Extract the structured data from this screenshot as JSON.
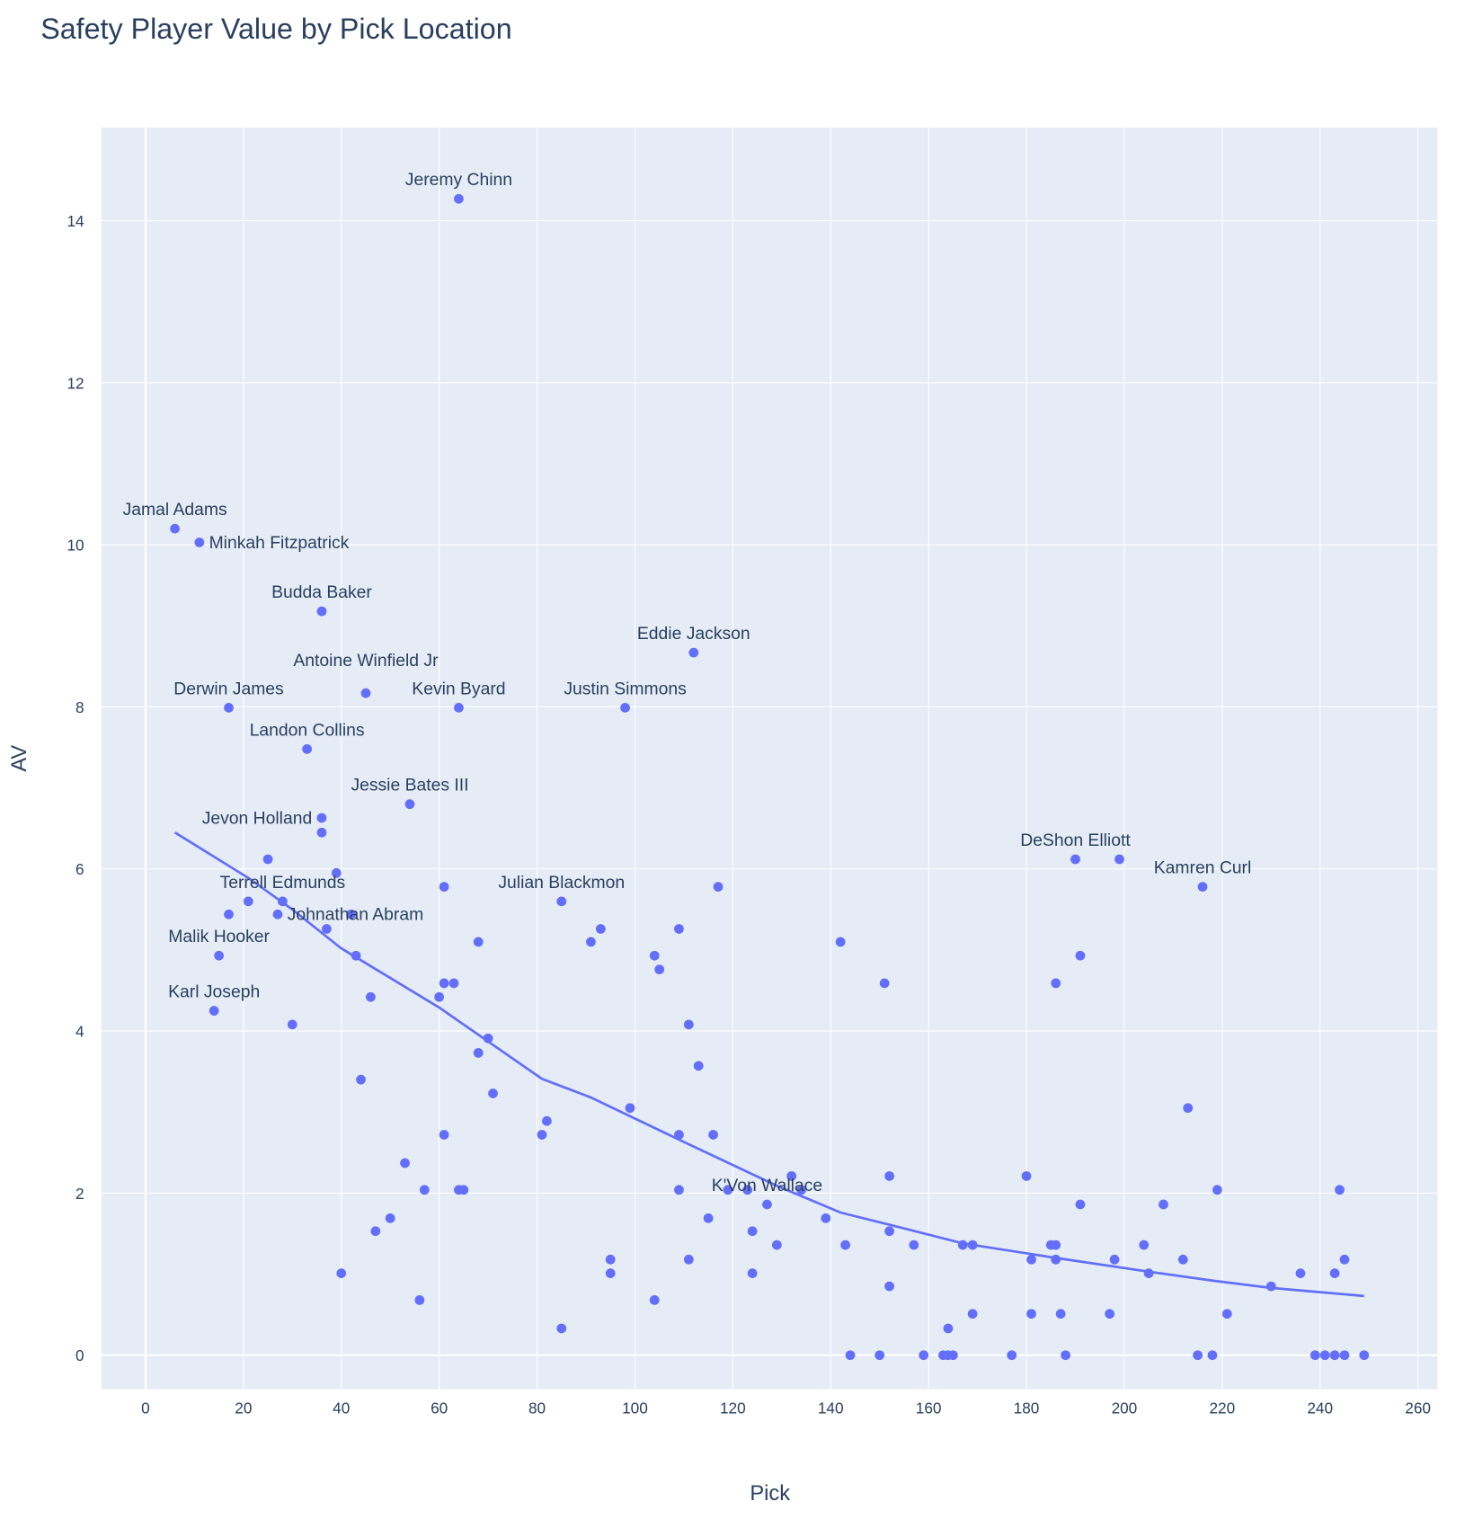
{
  "chart_data": {
    "type": "scatter",
    "title": "Safety Player Value by Pick Location",
    "xlabel": "Pick",
    "ylabel": "AV",
    "xlim": [
      -9,
      264
    ],
    "ylim": [
      -0.42,
      15.15
    ],
    "xticks": [
      0,
      20,
      40,
      60,
      80,
      100,
      120,
      140,
      160,
      180,
      200,
      220,
      240,
      260
    ],
    "yticks": [
      0,
      2,
      4,
      6,
      8,
      10,
      12,
      14
    ],
    "grid": true,
    "legend": "none",
    "colors": {
      "marker": "#636efa",
      "plot_bg": "#e5ecf6",
      "grid": "#ffffff",
      "text": "#2a3f5f"
    },
    "labeled_points": [
      {
        "name": "Jeremy Chinn",
        "x": 64,
        "y": 14.27
      },
      {
        "name": "Jamal Adams",
        "x": 6,
        "y": 10.2
      },
      {
        "name": "Minkah Fitzpatrick",
        "x": 11,
        "y": 10.03
      },
      {
        "name": "Budda Baker",
        "x": 36,
        "y": 9.18
      },
      {
        "name": "Eddie Jackson",
        "x": 112,
        "y": 8.67
      },
      {
        "name": "Antoine Winfield Jr",
        "x": 45,
        "y": 8.17
      },
      {
        "name": "Kevin Byard",
        "x": 64,
        "y": 7.99
      },
      {
        "name": "Justin Simmons",
        "x": 98,
        "y": 7.99
      },
      {
        "name": "Derwin James",
        "x": 17,
        "y": 7.99
      },
      {
        "name": "Landon Collins",
        "x": 33,
        "y": 7.48
      },
      {
        "name": "Jessie Bates III",
        "x": 54,
        "y": 6.8
      },
      {
        "name": "Jevon Holland",
        "x": 36,
        "y": 6.63
      },
      {
        "name": "DeShon Elliott",
        "x": 190,
        "y": 6.12
      },
      {
        "name": "Kamren Curl",
        "x": 216,
        "y": 5.78
      },
      {
        "name": "Julian Blackmon",
        "x": 85,
        "y": 5.6
      },
      {
        "name": "Terrell Edmunds",
        "x": 28,
        "y": 5.6
      },
      {
        "name": "Johnathan Abram",
        "x": 27,
        "y": 5.44
      },
      {
        "name": "Malik Hooker",
        "x": 15,
        "y": 4.93
      },
      {
        "name": "Karl Joseph",
        "x": 14,
        "y": 4.25
      },
      {
        "name": "K'Von Wallace",
        "x": 127,
        "y": 1.86
      }
    ],
    "points": [
      [
        21,
        5.6
      ],
      [
        17,
        5.44
      ],
      [
        25,
        6.12
      ],
      [
        36,
        6.45
      ],
      [
        39,
        5.95
      ],
      [
        37,
        5.26
      ],
      [
        42,
        5.44
      ],
      [
        43,
        4.93
      ],
      [
        46,
        4.42
      ],
      [
        30,
        4.08
      ],
      [
        44,
        3.4
      ],
      [
        40,
        1.01
      ],
      [
        53,
        2.37
      ],
      [
        47,
        1.53
      ],
      [
        50,
        1.69
      ],
      [
        56,
        0.68
      ],
      [
        57,
        2.04
      ],
      [
        61,
        5.78
      ],
      [
        61,
        4.59
      ],
      [
        63,
        4.59
      ],
      [
        60,
        4.42
      ],
      [
        61,
        2.72
      ],
      [
        64,
        2.04
      ],
      [
        65,
        2.04
      ],
      [
        68,
        5.1
      ],
      [
        68,
        3.73
      ],
      [
        70,
        3.91
      ],
      [
        71,
        3.23
      ],
      [
        81,
        2.72
      ],
      [
        82,
        2.89
      ],
      [
        85,
        0.33
      ],
      [
        91,
        5.1
      ],
      [
        93,
        5.26
      ],
      [
        95,
        1.18
      ],
      [
        95,
        1.01
      ],
      [
        99,
        3.05
      ],
      [
        104,
        4.93
      ],
      [
        105,
        4.76
      ],
      [
        104,
        0.68
      ],
      [
        109,
        5.26
      ],
      [
        109,
        2.72
      ],
      [
        109,
        2.04
      ],
      [
        111,
        4.08
      ],
      [
        111,
        1.18
      ],
      [
        113,
        3.57
      ],
      [
        116,
        2.72
      ],
      [
        117,
        5.78
      ],
      [
        115,
        1.69
      ],
      [
        119,
        2.04
      ],
      [
        123,
        2.04
      ],
      [
        124,
        1.53
      ],
      [
        124,
        1.01
      ],
      [
        129,
        1.36
      ],
      [
        132,
        2.21
      ],
      [
        134,
        2.04
      ],
      [
        139,
        1.69
      ],
      [
        142,
        5.1
      ],
      [
        143,
        1.36
      ],
      [
        144,
        0
      ],
      [
        150,
        0
      ],
      [
        151,
        4.59
      ],
      [
        152,
        2.21
      ],
      [
        152,
        1.53
      ],
      [
        152,
        0.85
      ],
      [
        157,
        1.36
      ],
      [
        159,
        0
      ],
      [
        163,
        0
      ],
      [
        164,
        0
      ],
      [
        165,
        0
      ],
      [
        164,
        0.33
      ],
      [
        167,
        1.36
      ],
      [
        169,
        1.36
      ],
      [
        169,
        0.51
      ],
      [
        177,
        0
      ],
      [
        180,
        2.21
      ],
      [
        181,
        1.18
      ],
      [
        181,
        0.51
      ],
      [
        185,
        1.36
      ],
      [
        186,
        1.36
      ],
      [
        186,
        1.18
      ],
      [
        186,
        4.59
      ],
      [
        187,
        0.51
      ],
      [
        188,
        0
      ],
      [
        191,
        4.93
      ],
      [
        191,
        1.86
      ],
      [
        197,
        0.51
      ],
      [
        198,
        1.18
      ],
      [
        199,
        6.12
      ],
      [
        204,
        1.36
      ],
      [
        205,
        1.01
      ],
      [
        208,
        1.86
      ],
      [
        212,
        1.18
      ],
      [
        213,
        3.05
      ],
      [
        215,
        0
      ],
      [
        218,
        0
      ],
      [
        219,
        2.04
      ],
      [
        221,
        0.51
      ],
      [
        230,
        0.85
      ],
      [
        236,
        1.01
      ],
      [
        239,
        0
      ],
      [
        241,
        0
      ],
      [
        243,
        0
      ],
      [
        243,
        1.01
      ],
      [
        244,
        2.04
      ],
      [
        245,
        1.18
      ],
      [
        245,
        0
      ],
      [
        249,
        0
      ]
    ],
    "trend": [
      [
        6,
        6.45
      ],
      [
        21,
        5.89
      ],
      [
        30,
        5.5
      ],
      [
        40,
        5.02
      ],
      [
        60,
        4.29
      ],
      [
        81,
        3.41
      ],
      [
        91,
        3.18
      ],
      [
        109,
        2.66
      ],
      [
        129,
        2.09
      ],
      [
        142,
        1.76
      ],
      [
        152,
        1.61
      ],
      [
        167,
        1.38
      ],
      [
        186,
        1.2
      ],
      [
        205,
        1.03
      ],
      [
        218,
        0.92
      ],
      [
        230,
        0.83
      ],
      [
        249,
        0.73
      ]
    ]
  }
}
